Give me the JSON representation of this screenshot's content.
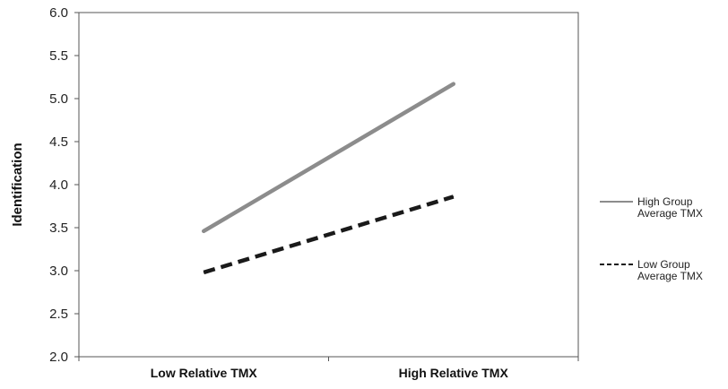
{
  "chart_data": {
    "type": "line",
    "title": "",
    "xlabel": "",
    "ylabel": "Identification",
    "categories": [
      "Low Relative TMX",
      "High Relative TMX"
    ],
    "ylim": [
      2.0,
      6.0
    ],
    "yticks": [
      "2.0",
      "2.5",
      "3.0",
      "3.5",
      "4.0",
      "4.5",
      "5.0",
      "5.5",
      "6.0"
    ],
    "grid": false,
    "legend_position": "right",
    "series": [
      {
        "name": "High Group Average TMX",
        "legend_lines": [
          "High Group",
          "Average TMX"
        ],
        "values": [
          3.46,
          5.17
        ],
        "color": "#8c8c8c",
        "style": "solid"
      },
      {
        "name": "Low Group Average TMX",
        "legend_lines": [
          "Low Group",
          "Average TMX"
        ],
        "values": [
          2.98,
          3.86
        ],
        "color": "#1a1a1a",
        "style": "dashed"
      }
    ]
  }
}
